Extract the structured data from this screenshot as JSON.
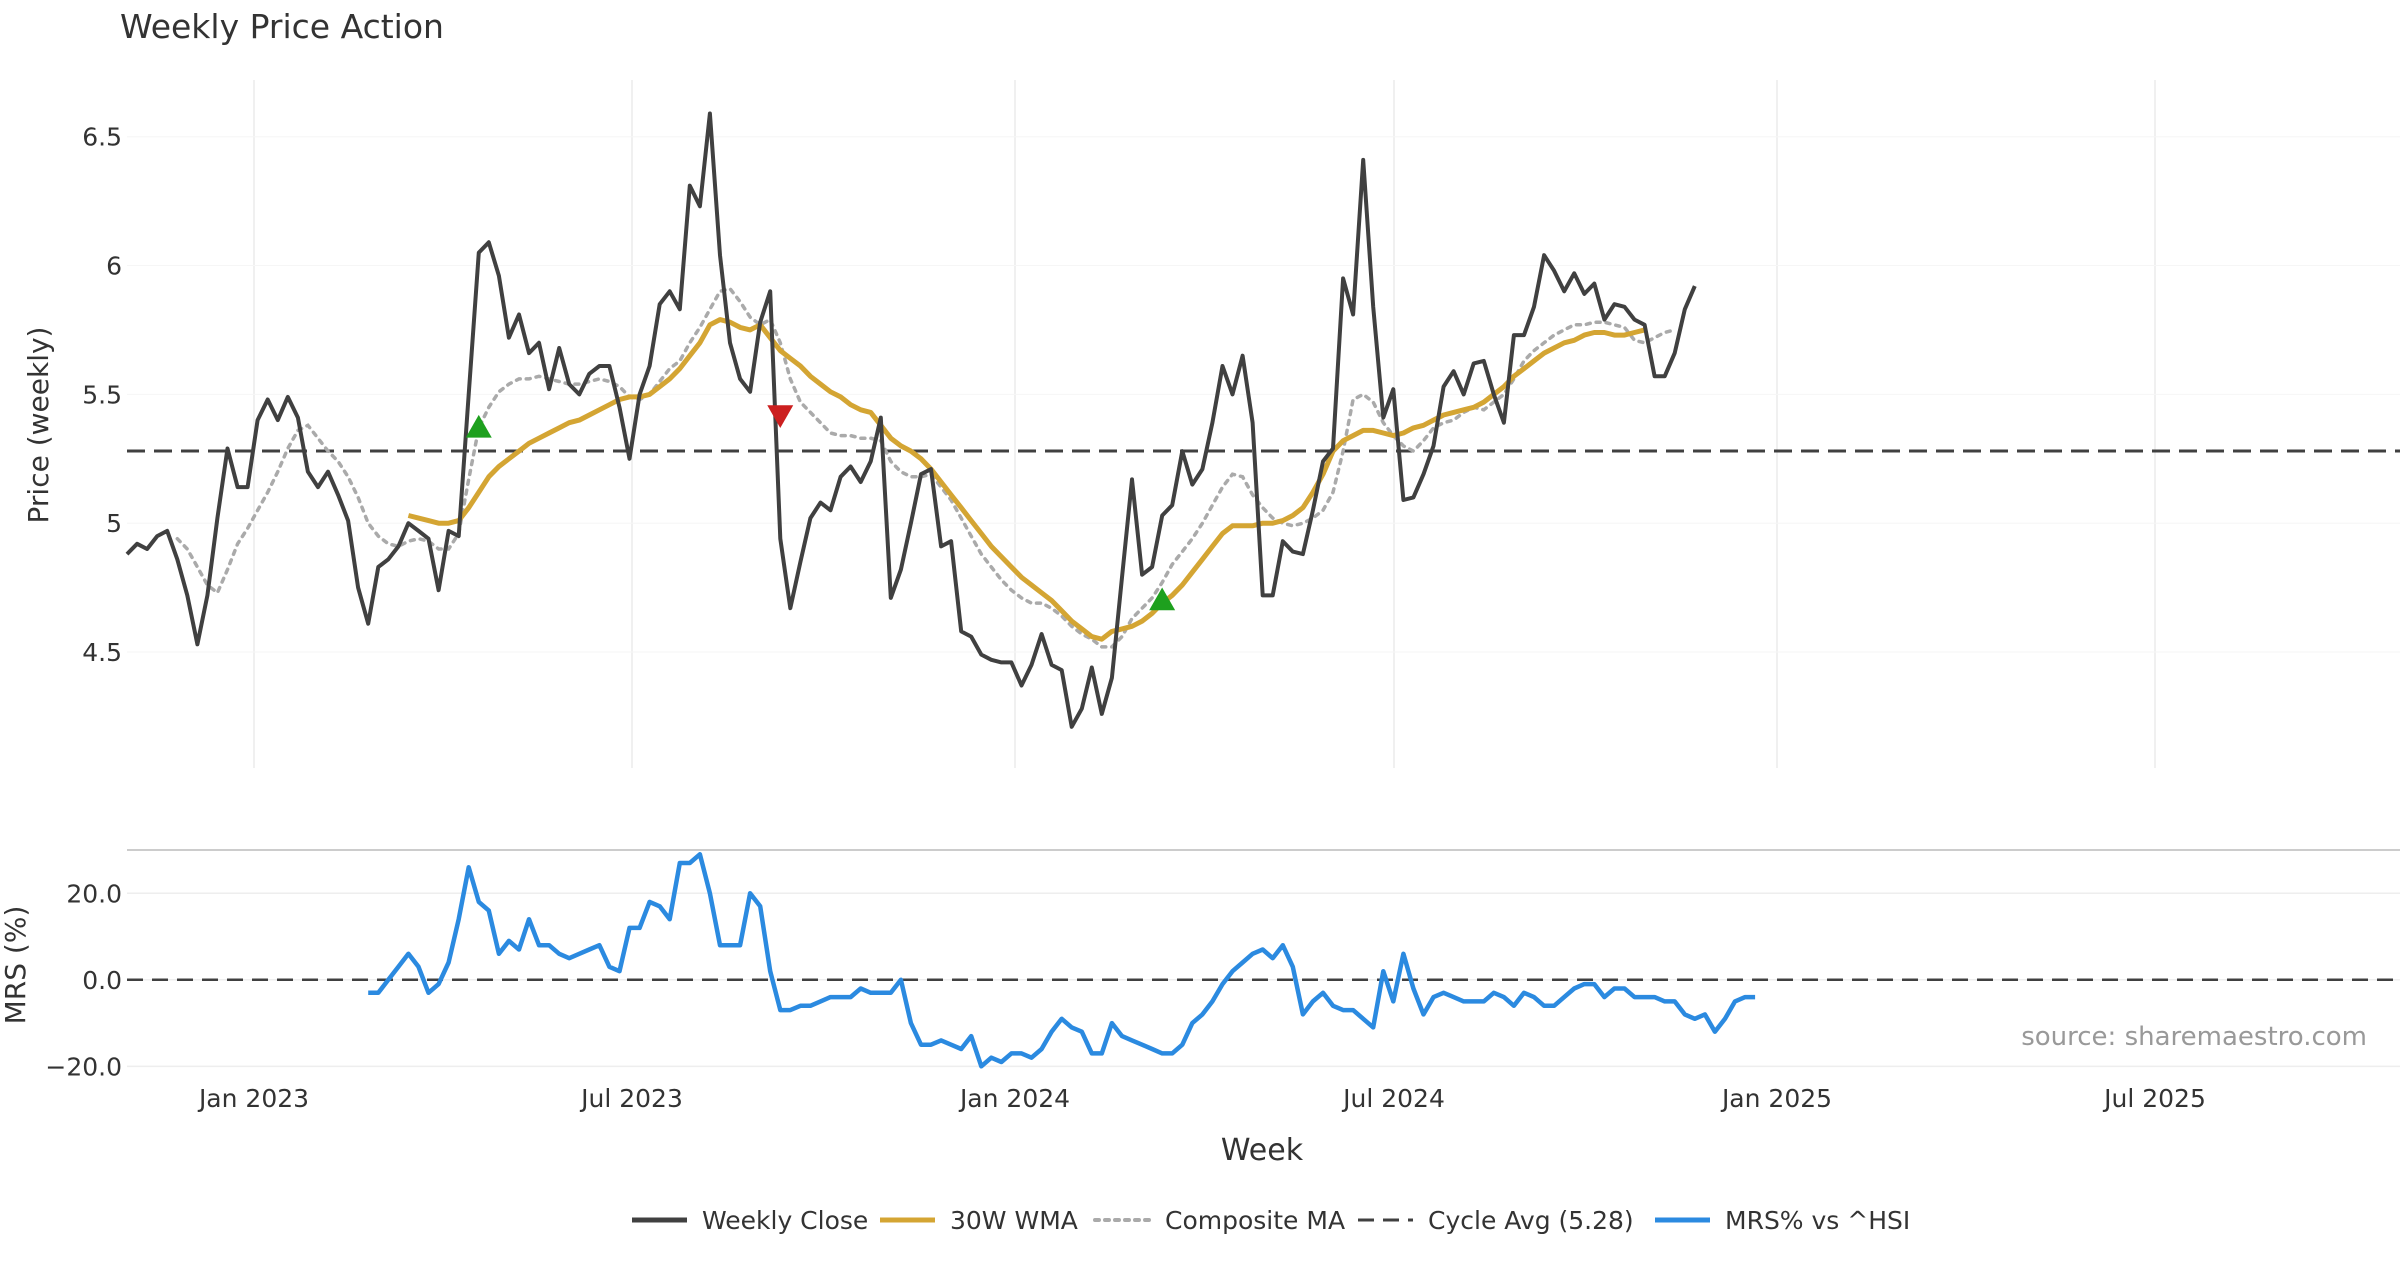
{
  "chart_data": {
    "type": "line",
    "title": "Weekly Price Action",
    "source": "source: sharemaestro.com",
    "x_ticks": [
      "Jan 2023",
      "Jul 2023",
      "Jan 2024",
      "Jul 2024",
      "Jan 2025",
      "Jul 2025"
    ],
    "xlabel": "Week",
    "price_panel": {
      "ylabel": "Price (weekly)",
      "yticks": [
        "4.5",
        "5",
        "5.5",
        "6",
        "6.5"
      ],
      "ylim": [
        4.05,
        6.72
      ],
      "cycle_avg": 5.28,
      "weekly_close": [
        4.88,
        4.92,
        4.9,
        4.95,
        4.97,
        4.86,
        4.72,
        4.53,
        4.72,
        5.02,
        5.29,
        5.14,
        5.14,
        5.4,
        5.48,
        5.4,
        5.49,
        5.41,
        5.2,
        5.14,
        5.2,
        5.11,
        5.01,
        4.75,
        4.61,
        4.83,
        4.86,
        4.91,
        5.0,
        4.97,
        4.94,
        4.74,
        4.97,
        4.95,
        5.5,
        6.05,
        6.09,
        5.96,
        5.72,
        5.81,
        5.66,
        5.7,
        5.52,
        5.68,
        5.54,
        5.5,
        5.58,
        5.61,
        5.61,
        5.45,
        5.25,
        5.5,
        5.61,
        5.85,
        5.9,
        5.83,
        6.31,
        6.23,
        6.59,
        6.04,
        5.7,
        5.56,
        5.51,
        5.78,
        5.9,
        4.94,
        4.67,
        4.85,
        5.02,
        5.08,
        5.05,
        5.18,
        5.22,
        5.16,
        5.24,
        5.41,
        4.71,
        4.82,
        5.0,
        5.19,
        5.21,
        4.91,
        4.93,
        4.58,
        4.56,
        4.49,
        4.47,
        4.46,
        4.46,
        4.37,
        4.45,
        4.57,
        4.45,
        4.43,
        4.21,
        4.28,
        4.44,
        4.26,
        4.4,
        4.79,
        5.17,
        4.8,
        4.83,
        5.03,
        5.07,
        5.28,
        5.15,
        5.21,
        5.39,
        5.61,
        5.5,
        5.65,
        5.39,
        4.72,
        4.72,
        4.93,
        4.89,
        4.88,
        5.05,
        5.24,
        5.29,
        5.95,
        5.81,
        6.41,
        5.84,
        5.41,
        5.52,
        5.09,
        5.1,
        5.19,
        5.3,
        5.53,
        5.59,
        5.5,
        5.62,
        5.63,
        5.5,
        5.39,
        5.73,
        5.73,
        5.84,
        6.04,
        5.98,
        5.9,
        5.97,
        5.89,
        5.93,
        5.79,
        5.85,
        5.84,
        5.79,
        5.77,
        5.57,
        5.57,
        5.66,
        5.83,
        5.92
      ],
      "wma_30w": [
        null,
        null,
        null,
        null,
        null,
        null,
        null,
        null,
        null,
        null,
        null,
        null,
        null,
        null,
        null,
        null,
        null,
        null,
        null,
        null,
        null,
        null,
        null,
        null,
        null,
        null,
        null,
        null,
        null,
        null,
        null,
        null,
        null,
        null,
        null,
        null,
        null,
        null,
        null,
        null,
        null,
        null,
        null,
        null,
        null,
        null,
        null,
        null,
        null,
        null,
        null,
        null,
        null,
        null,
        null,
        null,
        null,
        null,
        null,
        null,
        null,
        null,
        null,
        null,
        null,
        null,
        null,
        null,
        null,
        null,
        null,
        null,
        null,
        null,
        null,
        null,
        null,
        null,
        null,
        null,
        null,
        null,
        null,
        null,
        null,
        null,
        null,
        null,
        null,
        null,
        null,
        null,
        null,
        null,
        null,
        null,
        null,
        null,
        null,
        null,
        null,
        null,
        null,
        null,
        null,
        null,
        null,
        null,
        null,
        null,
        null,
        null,
        null,
        null,
        null,
        null,
        null,
        null,
        null,
        null,
        null,
        null,
        null,
        null,
        null,
        null,
        null,
        null,
        null,
        null,
        null,
        null,
        null,
        null,
        null,
        null,
        null,
        null,
        null,
        null,
        null,
        null,
        null,
        null,
        null,
        null,
        null,
        null,
        null,
        null,
        null,
        null,
        null,
        null,
        null,
        null,
        null,
        null,
        null,
        null,
        null,
        null,
        null,
        null,
        null,
        null
      ],
      "wma_30w_from_week": 28,
      "wma_30w_values": [
        5.03,
        5.02,
        5.01,
        5.0,
        5.0,
        5.01,
        5.06,
        5.12,
        5.18,
        5.22,
        5.25,
        5.28,
        5.31,
        5.33,
        5.35,
        5.37,
        5.39,
        5.4,
        5.42,
        5.44,
        5.46,
        5.48,
        5.49,
        5.49,
        5.5,
        5.53,
        5.56,
        5.6,
        5.65,
        5.7,
        5.77,
        5.79,
        5.78,
        5.76,
        5.75,
        5.77,
        5.72,
        5.67,
        5.64,
        5.61,
        5.57,
        5.54,
        5.51,
        5.49,
        5.46,
        5.44,
        5.43,
        5.38,
        5.33,
        5.3,
        5.28,
        5.25,
        5.21,
        5.16,
        5.11,
        5.06,
        5.01,
        4.96,
        4.91,
        4.87,
        4.83,
        4.79,
        4.76,
        4.73,
        4.7,
        4.66,
        4.62,
        4.59,
        4.56,
        4.55,
        4.58,
        4.59,
        4.6,
        4.62,
        4.65,
        4.69,
        4.72,
        4.76,
        4.81,
        4.86,
        4.91,
        4.96,
        4.99,
        4.99,
        4.99,
        5.0,
        5.0,
        5.01,
        5.03,
        5.06,
        5.12,
        5.19,
        5.28,
        5.32,
        5.34,
        5.36,
        5.36,
        5.35,
        5.34,
        5.35,
        5.37,
        5.38,
        5.4,
        5.42,
        5.43,
        5.44,
        5.45,
        5.47,
        5.5,
        5.53,
        5.57,
        5.6,
        5.63,
        5.66,
        5.68,
        5.7,
        5.71,
        5.73,
        5.74,
        5.74,
        5.73,
        5.73,
        5.74,
        5.75
      ],
      "composite_ma": [
        null,
        null,
        null,
        null,
        null,
        4.94,
        4.9,
        4.83,
        4.76,
        4.73,
        4.82,
        4.92,
        4.98,
        5.05,
        5.12,
        5.2,
        5.29,
        5.36,
        5.38,
        5.33,
        5.28,
        5.24,
        5.18,
        5.1,
        5.0,
        4.95,
        4.92,
        4.91,
        4.93,
        4.94,
        4.93,
        4.9,
        4.9,
        4.96,
        5.17,
        5.37,
        5.45,
        5.51,
        5.54,
        5.56,
        5.56,
        5.57,
        5.56,
        5.55,
        5.54,
        5.54,
        5.55,
        5.56,
        5.55,
        5.53,
        5.49,
        5.48,
        5.5,
        5.55,
        5.6,
        5.63,
        5.7,
        5.76,
        5.83,
        5.9,
        5.91,
        5.86,
        5.8,
        5.77,
        5.79,
        5.7,
        5.56,
        5.47,
        5.43,
        5.39,
        5.35,
        5.34,
        5.34,
        5.33,
        5.33,
        5.32,
        5.24,
        5.2,
        5.18,
        5.18,
        5.19,
        5.14,
        5.09,
        5.02,
        4.95,
        4.88,
        4.83,
        4.78,
        4.74,
        4.71,
        4.69,
        4.69,
        4.67,
        4.64,
        4.6,
        4.57,
        4.55,
        4.52,
        4.52,
        4.56,
        4.63,
        4.67,
        4.71,
        4.77,
        4.84,
        4.89,
        4.94,
        5.0,
        5.07,
        5.14,
        5.19,
        5.18,
        5.11,
        5.06,
        5.02,
        5.0,
        4.99,
        5.0,
        5.02,
        5.05,
        5.12,
        5.28,
        5.48,
        5.5,
        5.47,
        5.39,
        5.34,
        5.3,
        5.28,
        5.32,
        5.37,
        5.39,
        5.4,
        5.43,
        5.45,
        5.44,
        5.47,
        5.5,
        5.56,
        5.63,
        5.67,
        5.7,
        5.73,
        5.75,
        5.77,
        5.77,
        5.78,
        5.78,
        5.77,
        5.76,
        5.71,
        5.7,
        5.72,
        5.74,
        5.75
      ],
      "signals": [
        {
          "type": "buy",
          "week": 35,
          "price": 5.37
        },
        {
          "type": "sell",
          "week": 65,
          "price": 5.42
        },
        {
          "type": "buy",
          "week": 103,
          "price": 4.7
        }
      ]
    },
    "mrs_panel": {
      "ylabel": "MRS (%)",
      "yticks": [
        "−20.0",
        "0.0",
        "20.0"
      ],
      "ylim": [
        -22,
        30
      ],
      "from_week": 24,
      "values": [
        -3,
        -3,
        0,
        3,
        6,
        3,
        -3,
        -1,
        4,
        14,
        26,
        18,
        16,
        6,
        9,
        7,
        14,
        8,
        8,
        6,
        5,
        6,
        7,
        8,
        3,
        2,
        12,
        12,
        18,
        17,
        14,
        27,
        27,
        29,
        20,
        8,
        8,
        8,
        20,
        17,
        2,
        -7,
        -7,
        -6,
        -6,
        -5,
        -4,
        -4,
        -4,
        -2,
        -3,
        -3,
        -3,
        0,
        -10,
        -15,
        -15,
        -14,
        -15,
        -16,
        -13,
        -20,
        -18,
        -19,
        -17,
        -17,
        -18,
        -16,
        -12,
        -9,
        -11,
        -12,
        -17,
        -17,
        -10,
        -13,
        -14,
        -15,
        -16,
        -17,
        -17,
        -15,
        -10,
        -8,
        -5,
        -1,
        2,
        4,
        6,
        7,
        5,
        8,
        3,
        -8,
        -5,
        -3,
        -6,
        -7,
        -7,
        -9,
        -11,
        2,
        -5,
        6,
        -2,
        -8,
        -4,
        -3,
        -4,
        -5,
        -5,
        -5,
        -3,
        -4,
        -6,
        -3,
        -4,
        -6,
        -6,
        -4,
        -2,
        -1,
        -1,
        -4,
        -2,
        -2,
        -4,
        -4,
        -4,
        -5,
        -5,
        -8,
        -9,
        -8,
        -12,
        -9,
        -5,
        -4,
        -4
      ]
    },
    "legend": [
      {
        "label": "Weekly Close",
        "color": "#404040",
        "style": "solid"
      },
      {
        "label": "30W WMA",
        "color": "#d4a533",
        "style": "solid"
      },
      {
        "label": "Composite MA",
        "color": "#aaaaaa",
        "style": "dotted"
      },
      {
        "label": "Cycle Avg (5.28)",
        "color": "#404040",
        "style": "dashed"
      },
      {
        "label": "MRS% vs ^HSI",
        "color": "#2b8ae0",
        "style": "solid"
      }
    ],
    "colors": {
      "close": "#404040",
      "wma": "#d4a533",
      "composite": "#aaaaaa",
      "mrs": "#2b8ae0",
      "buy": "#1ea01e",
      "sell": "#cc1f1f",
      "grid": "#ececec"
    }
  }
}
